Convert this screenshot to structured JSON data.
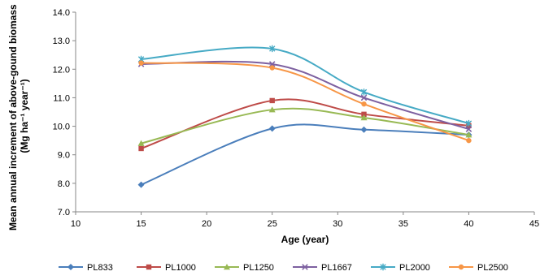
{
  "chart_data": {
    "type": "line",
    "title": "",
    "xlabel": "Age (year)",
    "ylabel_line1": "Mean annual increment of above-gound biomass",
    "ylabel_line2": "(Mg ha⁻¹ year⁻¹)",
    "xlim": [
      10,
      45
    ],
    "ylim": [
      7.0,
      14.0
    ],
    "x_ticks": [
      "10",
      "15",
      "20",
      "25",
      "30",
      "35",
      "40",
      "45"
    ],
    "y_ticks": [
      "7.0",
      "8.0",
      "9.0",
      "10.0",
      "11.0",
      "12.0",
      "13.0",
      "14.0"
    ],
    "smooth": true,
    "grid": false,
    "legend_position": "bottom",
    "series": [
      {
        "name": "PL833",
        "color": "#4a7ebb",
        "marker": "diamond",
        "x": [
          15,
          25,
          32,
          40
        ],
        "y": [
          7.95,
          9.92,
          9.88,
          9.7
        ]
      },
      {
        "name": "PL1000",
        "color": "#be4b48",
        "marker": "square",
        "x": [
          15,
          25,
          32,
          40
        ],
        "y": [
          9.22,
          10.9,
          10.42,
          10.02
        ]
      },
      {
        "name": "PL1250",
        "color": "#98b954",
        "marker": "triangle",
        "x": [
          15,
          25,
          32,
          40
        ],
        "y": [
          9.4,
          10.58,
          10.3,
          9.7
        ]
      },
      {
        "name": "PL1667",
        "color": "#7d60a0",
        "marker": "x",
        "x": [
          15,
          25,
          32,
          40
        ],
        "y": [
          12.18,
          12.18,
          11.0,
          9.9
        ]
      },
      {
        "name": "PL2000",
        "color": "#46aac5",
        "marker": "star",
        "x": [
          15,
          25,
          32,
          40
        ],
        "y": [
          12.35,
          12.72,
          11.2,
          10.1
        ]
      },
      {
        "name": "PL2500",
        "color": "#f79646",
        "marker": "circle",
        "x": [
          15,
          25,
          32,
          40
        ],
        "y": [
          12.22,
          12.05,
          10.78,
          9.5
        ]
      }
    ]
  }
}
